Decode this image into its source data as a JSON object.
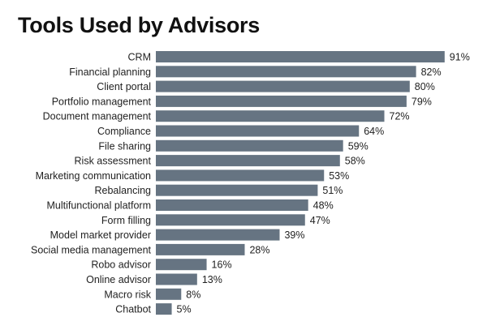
{
  "chart_data": {
    "type": "bar",
    "orientation": "horizontal",
    "title": "Tools Used by Advisors",
    "categories": [
      "CRM",
      "Financial planning",
      "Client portal",
      "Portfolio management",
      "Document management",
      "Compliance",
      "File sharing",
      "Risk assessment",
      "Marketing communication",
      "Rebalancing",
      "Multifunctional platform",
      "Form filling",
      "Model market provider",
      "Social media management",
      "Robo advisor",
      "Online advisor",
      "Macro risk",
      "Chatbot"
    ],
    "values": [
      91,
      82,
      80,
      79,
      72,
      64,
      59,
      58,
      53,
      51,
      48,
      47,
      39,
      28,
      16,
      13,
      8,
      5
    ],
    "value_suffix": "%",
    "xlim": [
      0,
      100
    ],
    "grid": false,
    "bar_color": "#667482"
  }
}
